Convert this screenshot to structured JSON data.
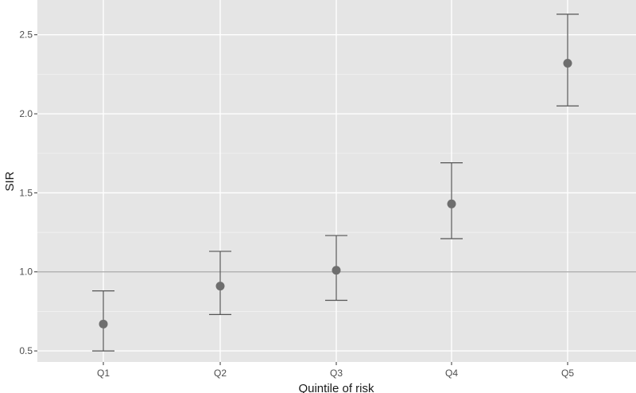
{
  "chart_data": {
    "type": "scatter",
    "title": "",
    "xlabel": "Quintile of risk",
    "ylabel": "SIR",
    "categories": [
      "Q1",
      "Q2",
      "Q3",
      "Q4",
      "Q5"
    ],
    "series": [
      {
        "values": [
          0.67,
          0.91,
          1.01,
          1.43,
          2.32
        ],
        "lower": [
          0.5,
          0.73,
          0.82,
          1.21,
          2.05
        ],
        "upper": [
          0.88,
          1.13,
          1.23,
          1.69,
          2.63
        ]
      }
    ],
    "yticks": [
      0.5,
      1.0,
      1.5,
      2.0,
      2.5
    ],
    "ytick_labels": [
      "0.5",
      "1.0",
      "1.5",
      "2.0",
      "2.5"
    ],
    "ylim": [
      0.43,
      2.72
    ],
    "reference_line": 1.0,
    "grid": true,
    "legend": "none",
    "colors": {
      "panel": "#e5e5e5",
      "grid_major": "#ffffff",
      "grid_minor": "#f2f2f2",
      "reference_line": "#a6a6a6",
      "point": "#6e6e6e",
      "errorbar": "#555555"
    }
  }
}
